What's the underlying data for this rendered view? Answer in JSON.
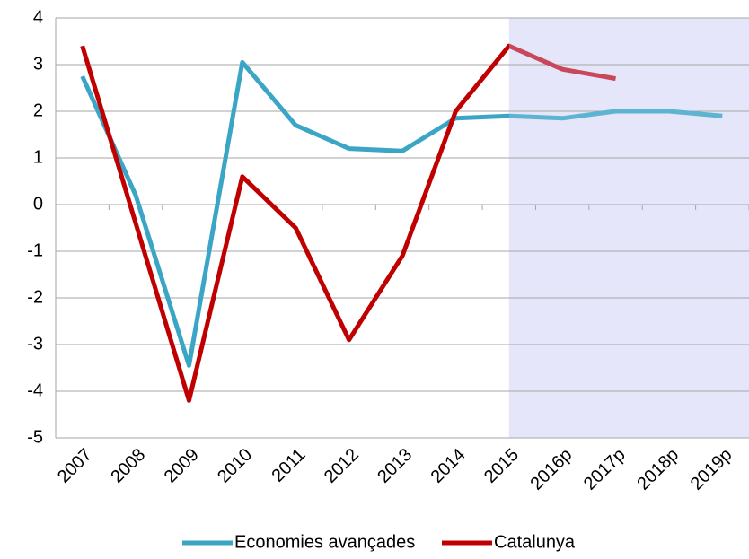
{
  "chart_data": {
    "type": "line",
    "categories": [
      "2007",
      "2008",
      "2009",
      "2010",
      "2011",
      "2012",
      "2013",
      "2014",
      "2015",
      "2016p",
      "2017p",
      "2018p",
      "2019p"
    ],
    "series": [
      {
        "name": "Economies avançades",
        "color": "#3ba5c5",
        "projection_color": "#5cb4d0",
        "values": [
          2.75,
          0.2,
          -3.45,
          3.05,
          1.7,
          1.2,
          1.15,
          1.85,
          1.9,
          1.85,
          2.0,
          2.0,
          1.9
        ]
      },
      {
        "name": "Catalunya",
        "color": "#c00000",
        "projection_color": "#c9475a",
        "values": [
          3.4,
          -0.4,
          -4.2,
          0.6,
          -0.5,
          -2.9,
          -1.1,
          2.0,
          3.4,
          2.9,
          2.7,
          null,
          null
        ]
      }
    ],
    "ylim": [
      -5,
      4
    ],
    "yticks": [
      -5,
      -4,
      -3,
      -2,
      -1,
      0,
      1,
      2,
      3,
      4
    ],
    "grid": true,
    "legend": "bottom"
  }
}
